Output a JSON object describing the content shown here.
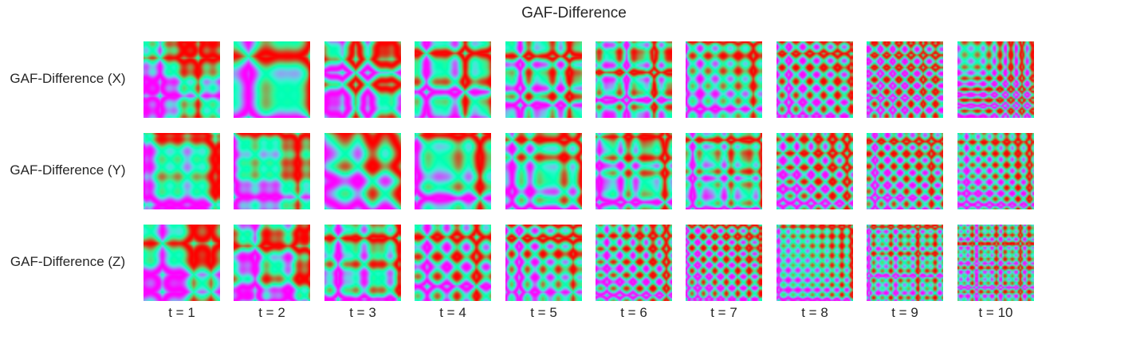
{
  "chart_data": {
    "type": "heatmap",
    "title": "GAF-Difference",
    "rows": [
      "GAF-Difference (X)",
      "GAF-Difference (Y)",
      "GAF-Difference (Z)"
    ],
    "columns": [
      "t = 1",
      "t = 2",
      "t = 3",
      "t = 4",
      "t = 5",
      "t = 6",
      "t = 7",
      "t = 8",
      "t = 9",
      "t = 10"
    ],
    "colormap": "rainbow",
    "value_range": [
      -1,
      1
    ],
    "axes": "off"
  }
}
